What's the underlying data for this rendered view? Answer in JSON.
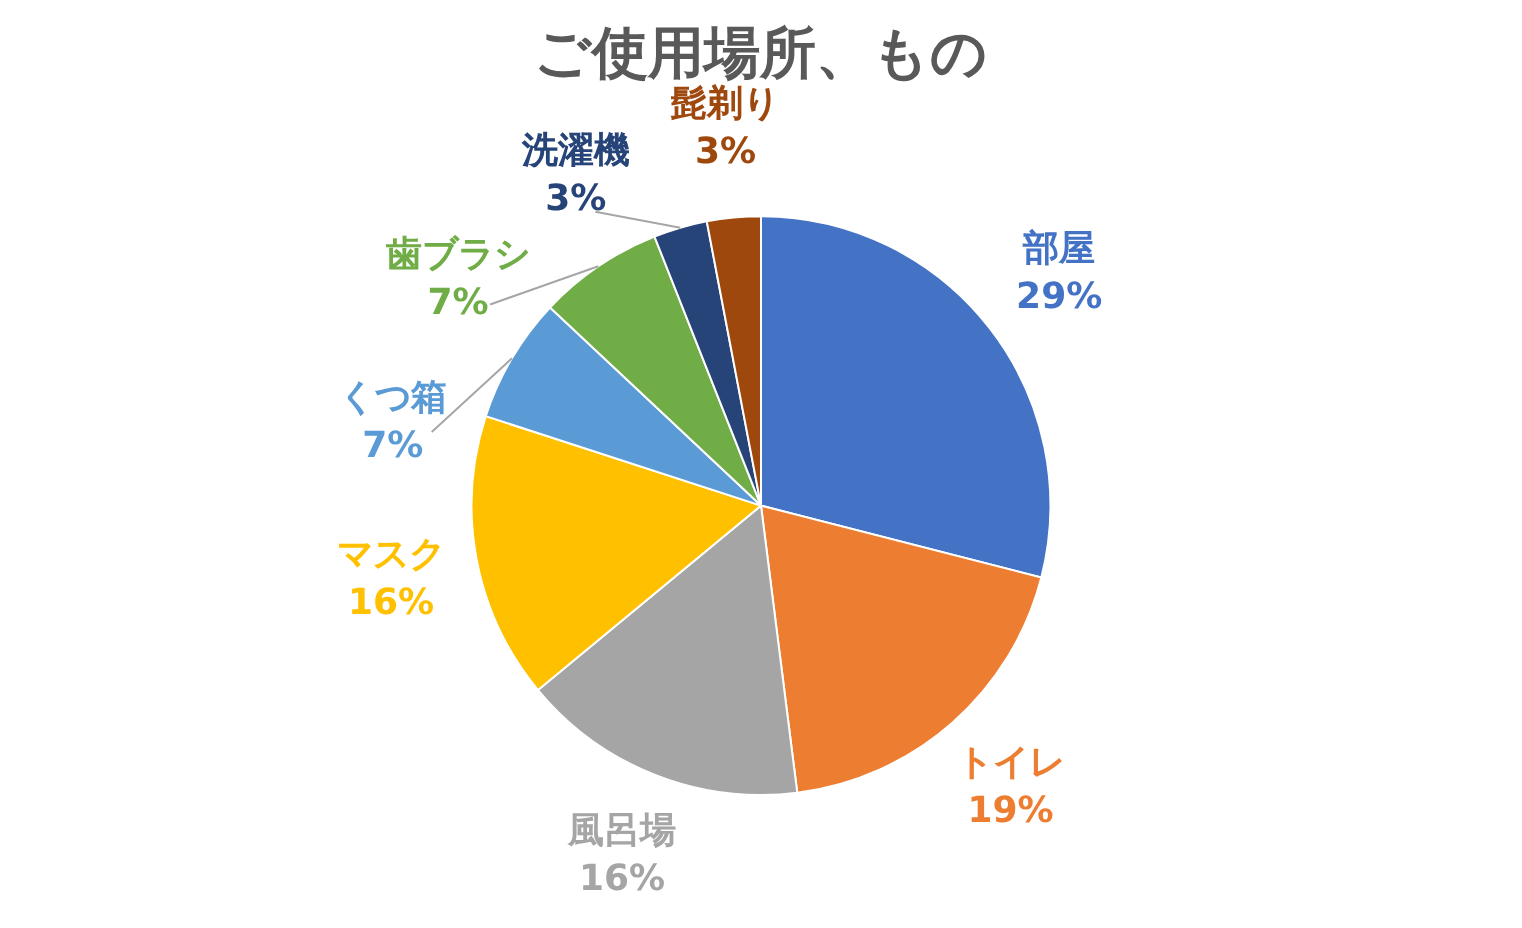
{
  "chart_data": {
    "type": "pie",
    "title": "ご使用場所、もの",
    "categories": [
      "部屋",
      "トイレ",
      "風呂場",
      "マスク",
      "くつ箱",
      "歯ブラシ",
      "洗濯機",
      "髭剃り"
    ],
    "values": [
      29,
      19,
      16,
      16,
      7,
      7,
      3,
      3
    ],
    "value_labels": [
      "29%",
      "19%",
      "16%",
      "16%",
      "7%",
      "7%",
      "3%",
      "3%"
    ],
    "colors": [
      "#4472c4",
      "#ed7d31",
      "#a5a5a5",
      "#ffc000",
      "#5b9bd5",
      "#70ad47",
      "#264478",
      "#9e480e"
    ],
    "legend": false
  }
}
